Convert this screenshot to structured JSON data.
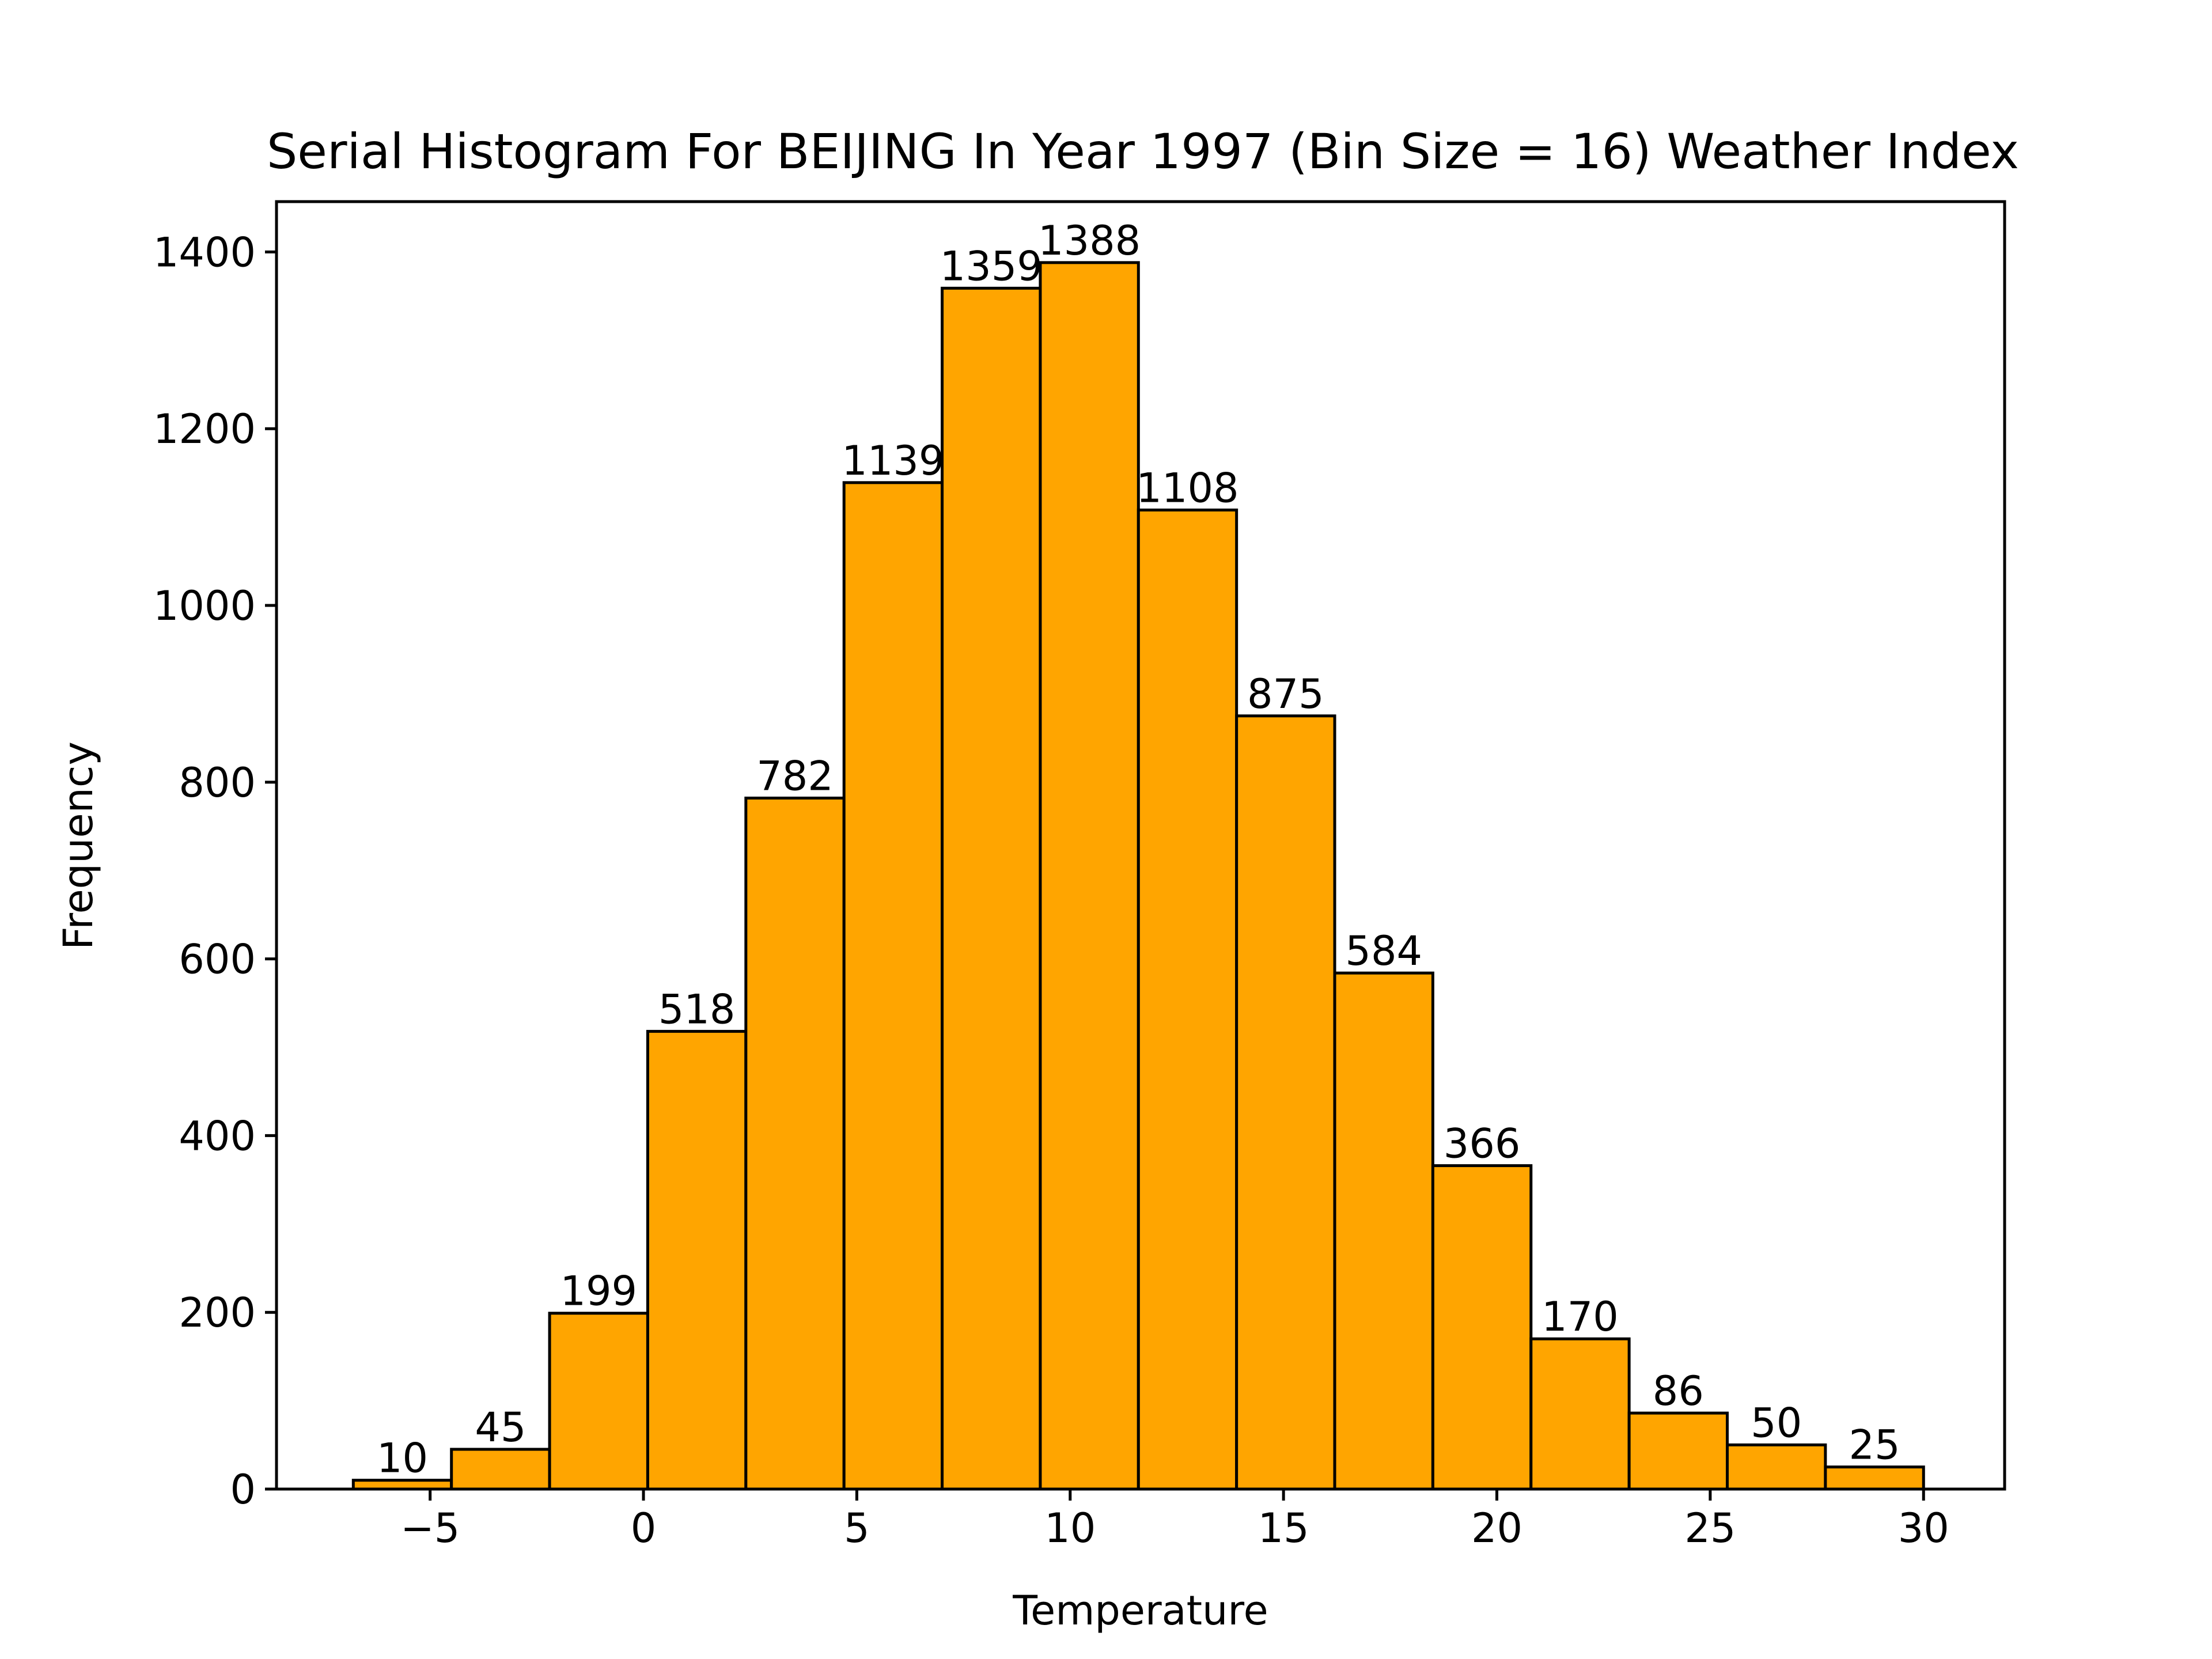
{
  "chart_data": {
    "type": "bar",
    "title": "Serial Histogram For BEIJING In Year 1997 (Bin Size = 16) Weather Index",
    "xlabel": "Temperature",
    "ylabel": "Frequency",
    "bin_edges": [
      -6.8,
      -4.5,
      -2.2,
      0.1,
      2.4,
      4.7,
      7.0,
      9.3,
      11.6,
      13.9,
      16.2,
      18.5,
      20.8,
      23.1,
      25.4,
      27.7,
      30.0
    ],
    "values": [
      10,
      45,
      199,
      518,
      782,
      1139,
      1359,
      1388,
      1108,
      875,
      584,
      366,
      170,
      86,
      50,
      25
    ],
    "value_labels": [
      "10",
      "45",
      "199",
      "518",
      "782",
      "1139",
      "1359",
      "1388",
      "1108",
      "875",
      "584",
      "366",
      "170",
      "86",
      "50",
      "25"
    ],
    "xlim": [
      -8.6,
      31.9
    ],
    "ylim": [
      0,
      1457
    ],
    "xticks": [
      -5,
      0,
      5,
      10,
      15,
      20,
      25,
      30
    ],
    "xtick_labels": [
      "−5",
      "0",
      "5",
      "10",
      "15",
      "20",
      "25",
      "30"
    ],
    "yticks": [
      0,
      200,
      400,
      600,
      800,
      1000,
      1200,
      1400
    ],
    "ytick_labels": [
      "0",
      "200",
      "400",
      "600",
      "800",
      "1000",
      "1200",
      "1400"
    ],
    "grid": false,
    "bar_color": "#FFA500",
    "edge_color": "#000000"
  }
}
